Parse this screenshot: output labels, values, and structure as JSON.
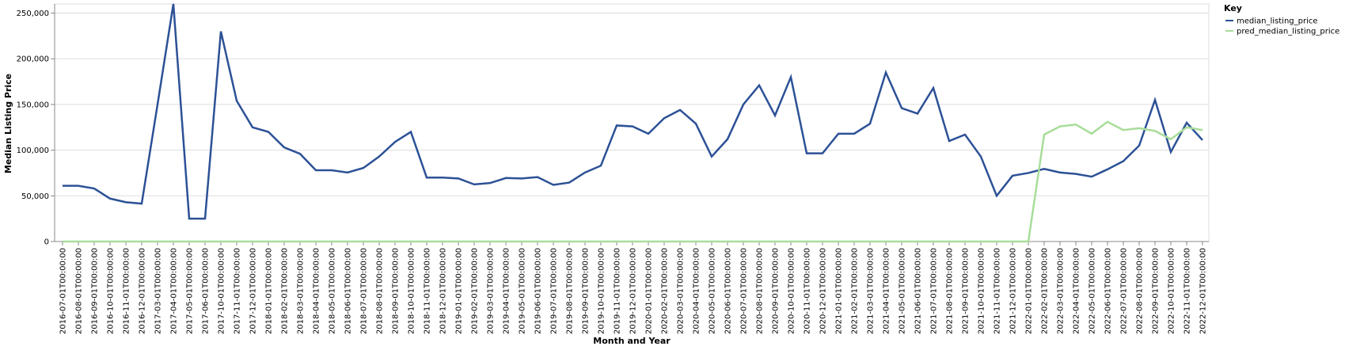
{
  "chart_data": {
    "type": "line",
    "xlabel": "Month and Year",
    "ylabel": "Median Listing Price",
    "ylim": [
      0,
      260000
    ],
    "y_ticks": [
      0,
      50000,
      100000,
      150000,
      200000,
      250000
    ],
    "y_tick_labels": [
      "0",
      "50,000",
      "100,000",
      "150,000",
      "200,000",
      "250,000"
    ],
    "grid": true,
    "legend": {
      "title": "Key",
      "position": "top-right"
    },
    "x": [
      "2016-07-01T00:00:00",
      "2016-08-01T00:00:00",
      "2016-09-01T00:00:00",
      "2016-10-01T00:00:00",
      "2016-11-01T00:00:00",
      "2016-12-01T00:00:00",
      "2017-03-01T00:00:00",
      "2017-04-01T00:00:00",
      "2017-05-01T00:00:00",
      "2017-06-01T00:00:00",
      "2017-10-01T00:00:00",
      "2017-11-01T00:00:00",
      "2017-12-01T00:00:00",
      "2018-01-01T00:00:00",
      "2018-02-01T00:00:00",
      "2018-03-01T00:00:00",
      "2018-04-01T00:00:00",
      "2018-05-01T00:00:00",
      "2018-06-01T00:00:00",
      "2018-07-01T00:00:00",
      "2018-08-01T00:00:00",
      "2018-09-01T00:00:00",
      "2018-10-01T00:00:00",
      "2018-11-01T00:00:00",
      "2018-12-01T00:00:00",
      "2019-01-01T00:00:00",
      "2019-02-01T00:00:00",
      "2019-03-01T00:00:00",
      "2019-04-01T00:00:00",
      "2019-05-01T00:00:00",
      "2019-06-01T00:00:00",
      "2019-07-01T00:00:00",
      "2019-08-01T00:00:00",
      "2019-09-01T00:00:00",
      "2019-10-01T00:00:00",
      "2019-11-01T00:00:00",
      "2019-12-01T00:00:00",
      "2020-01-01T00:00:00",
      "2020-02-01T00:00:00",
      "2020-03-01T00:00:00",
      "2020-04-01T00:00:00",
      "2020-05-01T00:00:00",
      "2020-06-01T00:00:00",
      "2020-07-01T00:00:00",
      "2020-08-01T00:00:00",
      "2020-09-01T00:00:00",
      "2020-10-01T00:00:00",
      "2020-11-01T00:00:00",
      "2020-12-01T00:00:00",
      "2021-01-01T00:00:00",
      "2021-02-01T00:00:00",
      "2021-03-01T00:00:00",
      "2021-04-01T00:00:00",
      "2021-05-01T00:00:00",
      "2021-06-01T00:00:00",
      "2021-07-01T00:00:00",
      "2021-08-01T00:00:00",
      "2021-09-01T00:00:00",
      "2021-10-01T00:00:00",
      "2021-11-01T00:00:00",
      "2021-12-01T00:00:00",
      "2022-01-01T00:00:00",
      "2022-02-01T00:00:00",
      "2022-03-01T00:00:00",
      "2022-04-01T00:00:00",
      "2022-05-01T00:00:00",
      "2022-06-01T00:00:00",
      "2022-07-01T00:00:00",
      "2022-08-01T00:00:00",
      "2022-09-01T00:00:00",
      "2022-10-01T00:00:00",
      "2022-11-01T00:00:00",
      "2022-12-01T00:00:00"
    ],
    "series": [
      {
        "name": "median_listing_price",
        "color": "#2c5196",
        "values": [
          61000,
          61000,
          58000,
          47000,
          43000,
          41500,
          150000,
          260000,
          25000,
          25000,
          230000,
          154000,
          125000,
          120000,
          103000,
          96000,
          78000,
          78000,
          75500,
          80500,
          93000,
          109000,
          120000,
          70000,
          70000,
          69000,
          62500,
          64000,
          69500,
          69000,
          70500,
          62000,
          64500,
          75500,
          83000,
          127000,
          126000,
          118000,
          135000,
          144000,
          129000,
          93000,
          112000,
          150000,
          171000,
          138000,
          180000,
          96500,
          96500,
          118000,
          118000,
          129000,
          185000,
          146000,
          140000,
          168000,
          110000,
          117000,
          93000,
          50000,
          72000,
          75000,
          79500,
          75500,
          74000,
          71000,
          79000,
          88000,
          105000,
          155000,
          98000,
          130000,
          111000
        ]
      },
      {
        "name": "pred_median_listing_price",
        "color": "#a8dd9a",
        "values": [
          0,
          0,
          0,
          0,
          0,
          0,
          0,
          0,
          0,
          0,
          0,
          0,
          0,
          0,
          0,
          0,
          0,
          0,
          0,
          0,
          0,
          0,
          0,
          0,
          0,
          0,
          0,
          0,
          0,
          0,
          0,
          0,
          0,
          0,
          0,
          0,
          0,
          0,
          0,
          0,
          0,
          0,
          0,
          0,
          0,
          0,
          0,
          0,
          0,
          0,
          0,
          0,
          0,
          0,
          0,
          0,
          0,
          0,
          0,
          0,
          0,
          0,
          117000,
          126000,
          128000,
          118000,
          131000,
          122000,
          124000,
          121000,
          112000,
          125000,
          122000
        ]
      }
    ]
  }
}
